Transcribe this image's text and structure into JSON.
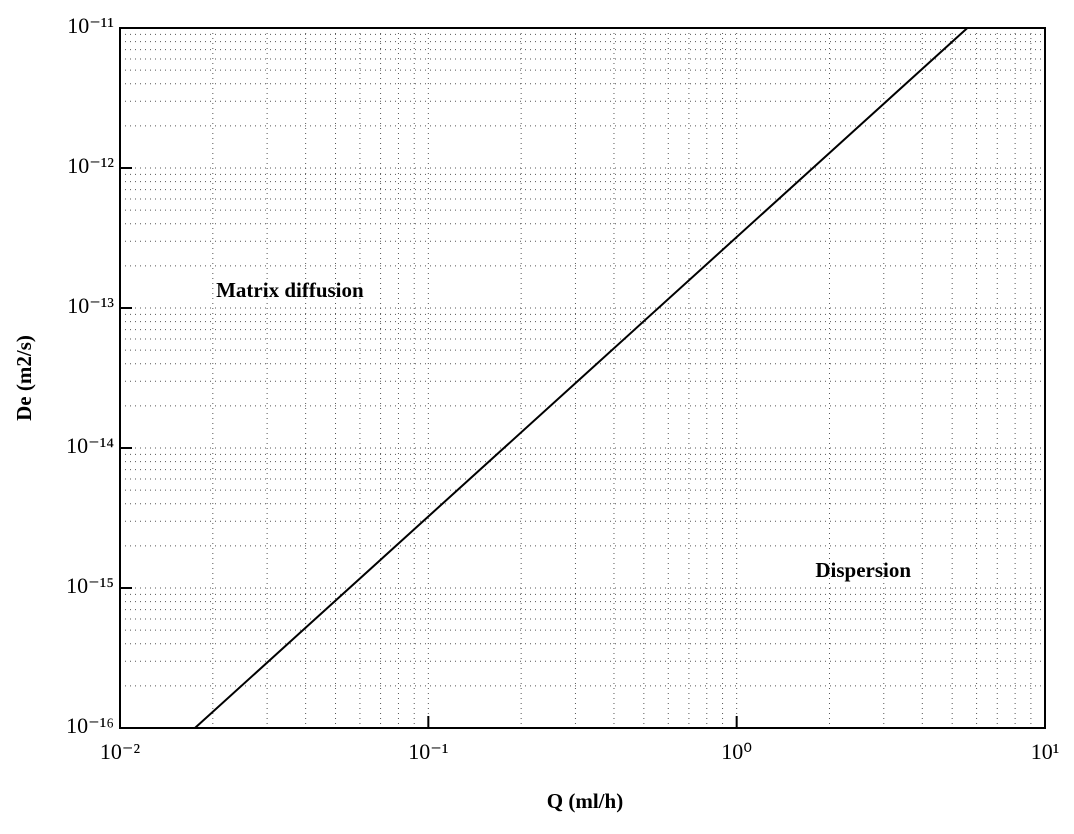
{
  "chart_data": {
    "type": "line",
    "xlabel": "Q (ml/h)",
    "ylabel": "De (m2/s)",
    "x_log": true,
    "y_log": true,
    "grid": true,
    "xlim": [
      0.01,
      10
    ],
    "ylim": [
      1e-16,
      1e-11
    ],
    "xticks": [
      {
        "value": 0.01,
        "label": "10⁻²"
      },
      {
        "value": 0.1,
        "label": "10⁻¹"
      },
      {
        "value": 1,
        "label": "10⁰"
      },
      {
        "value": 10,
        "label": "10¹"
      }
    ],
    "yticks": [
      {
        "value": 1e-16,
        "label": "10⁻¹⁶"
      },
      {
        "value": 1e-15,
        "label": "10⁻¹⁵"
      },
      {
        "value": 1e-14,
        "label": "10⁻¹⁴"
      },
      {
        "value": 1e-13,
        "label": "10⁻¹³"
      },
      {
        "value": 1e-12,
        "label": "10⁻¹²"
      },
      {
        "value": 1e-11,
        "label": "10⁻¹¹"
      }
    ],
    "xminorticks": [
      0.02,
      0.03,
      0.04,
      0.05,
      0.06,
      0.07,
      0.08,
      0.09,
      0.2,
      0.3,
      0.4,
      0.5,
      0.6,
      0.7,
      0.8,
      0.9,
      2,
      3,
      4,
      5,
      6,
      7,
      8,
      9
    ],
    "yminorticks": [
      2e-16,
      3e-16,
      4e-16,
      5e-16,
      6e-16,
      7e-16,
      8e-16,
      9e-16,
      2e-15,
      3e-15,
      4e-15,
      5e-15,
      6e-15,
      7e-15,
      8e-15,
      9e-15,
      2e-14,
      3e-14,
      4e-14,
      5e-14,
      6e-14,
      7e-14,
      8e-14,
      9e-14,
      2e-13,
      3e-13,
      4e-13,
      5e-13,
      6e-13,
      7e-13,
      8e-13,
      9e-13,
      2e-12,
      3e-12,
      4e-12,
      5e-12,
      6e-12,
      7e-12,
      8e-12,
      9e-12
    ],
    "x": [
      0.0175,
      5.6
    ],
    "series": [
      {
        "color": "#000000",
        "values": [
          1e-16,
          1e-11
        ]
      }
    ],
    "annotations": [
      {
        "text": "Matrix diffusion",
        "x": 0.0205,
        "y": 1.3e-13
      },
      {
        "text": "Dispersion",
        "x": 1.8,
        "y": 1.3e-15
      }
    ]
  }
}
